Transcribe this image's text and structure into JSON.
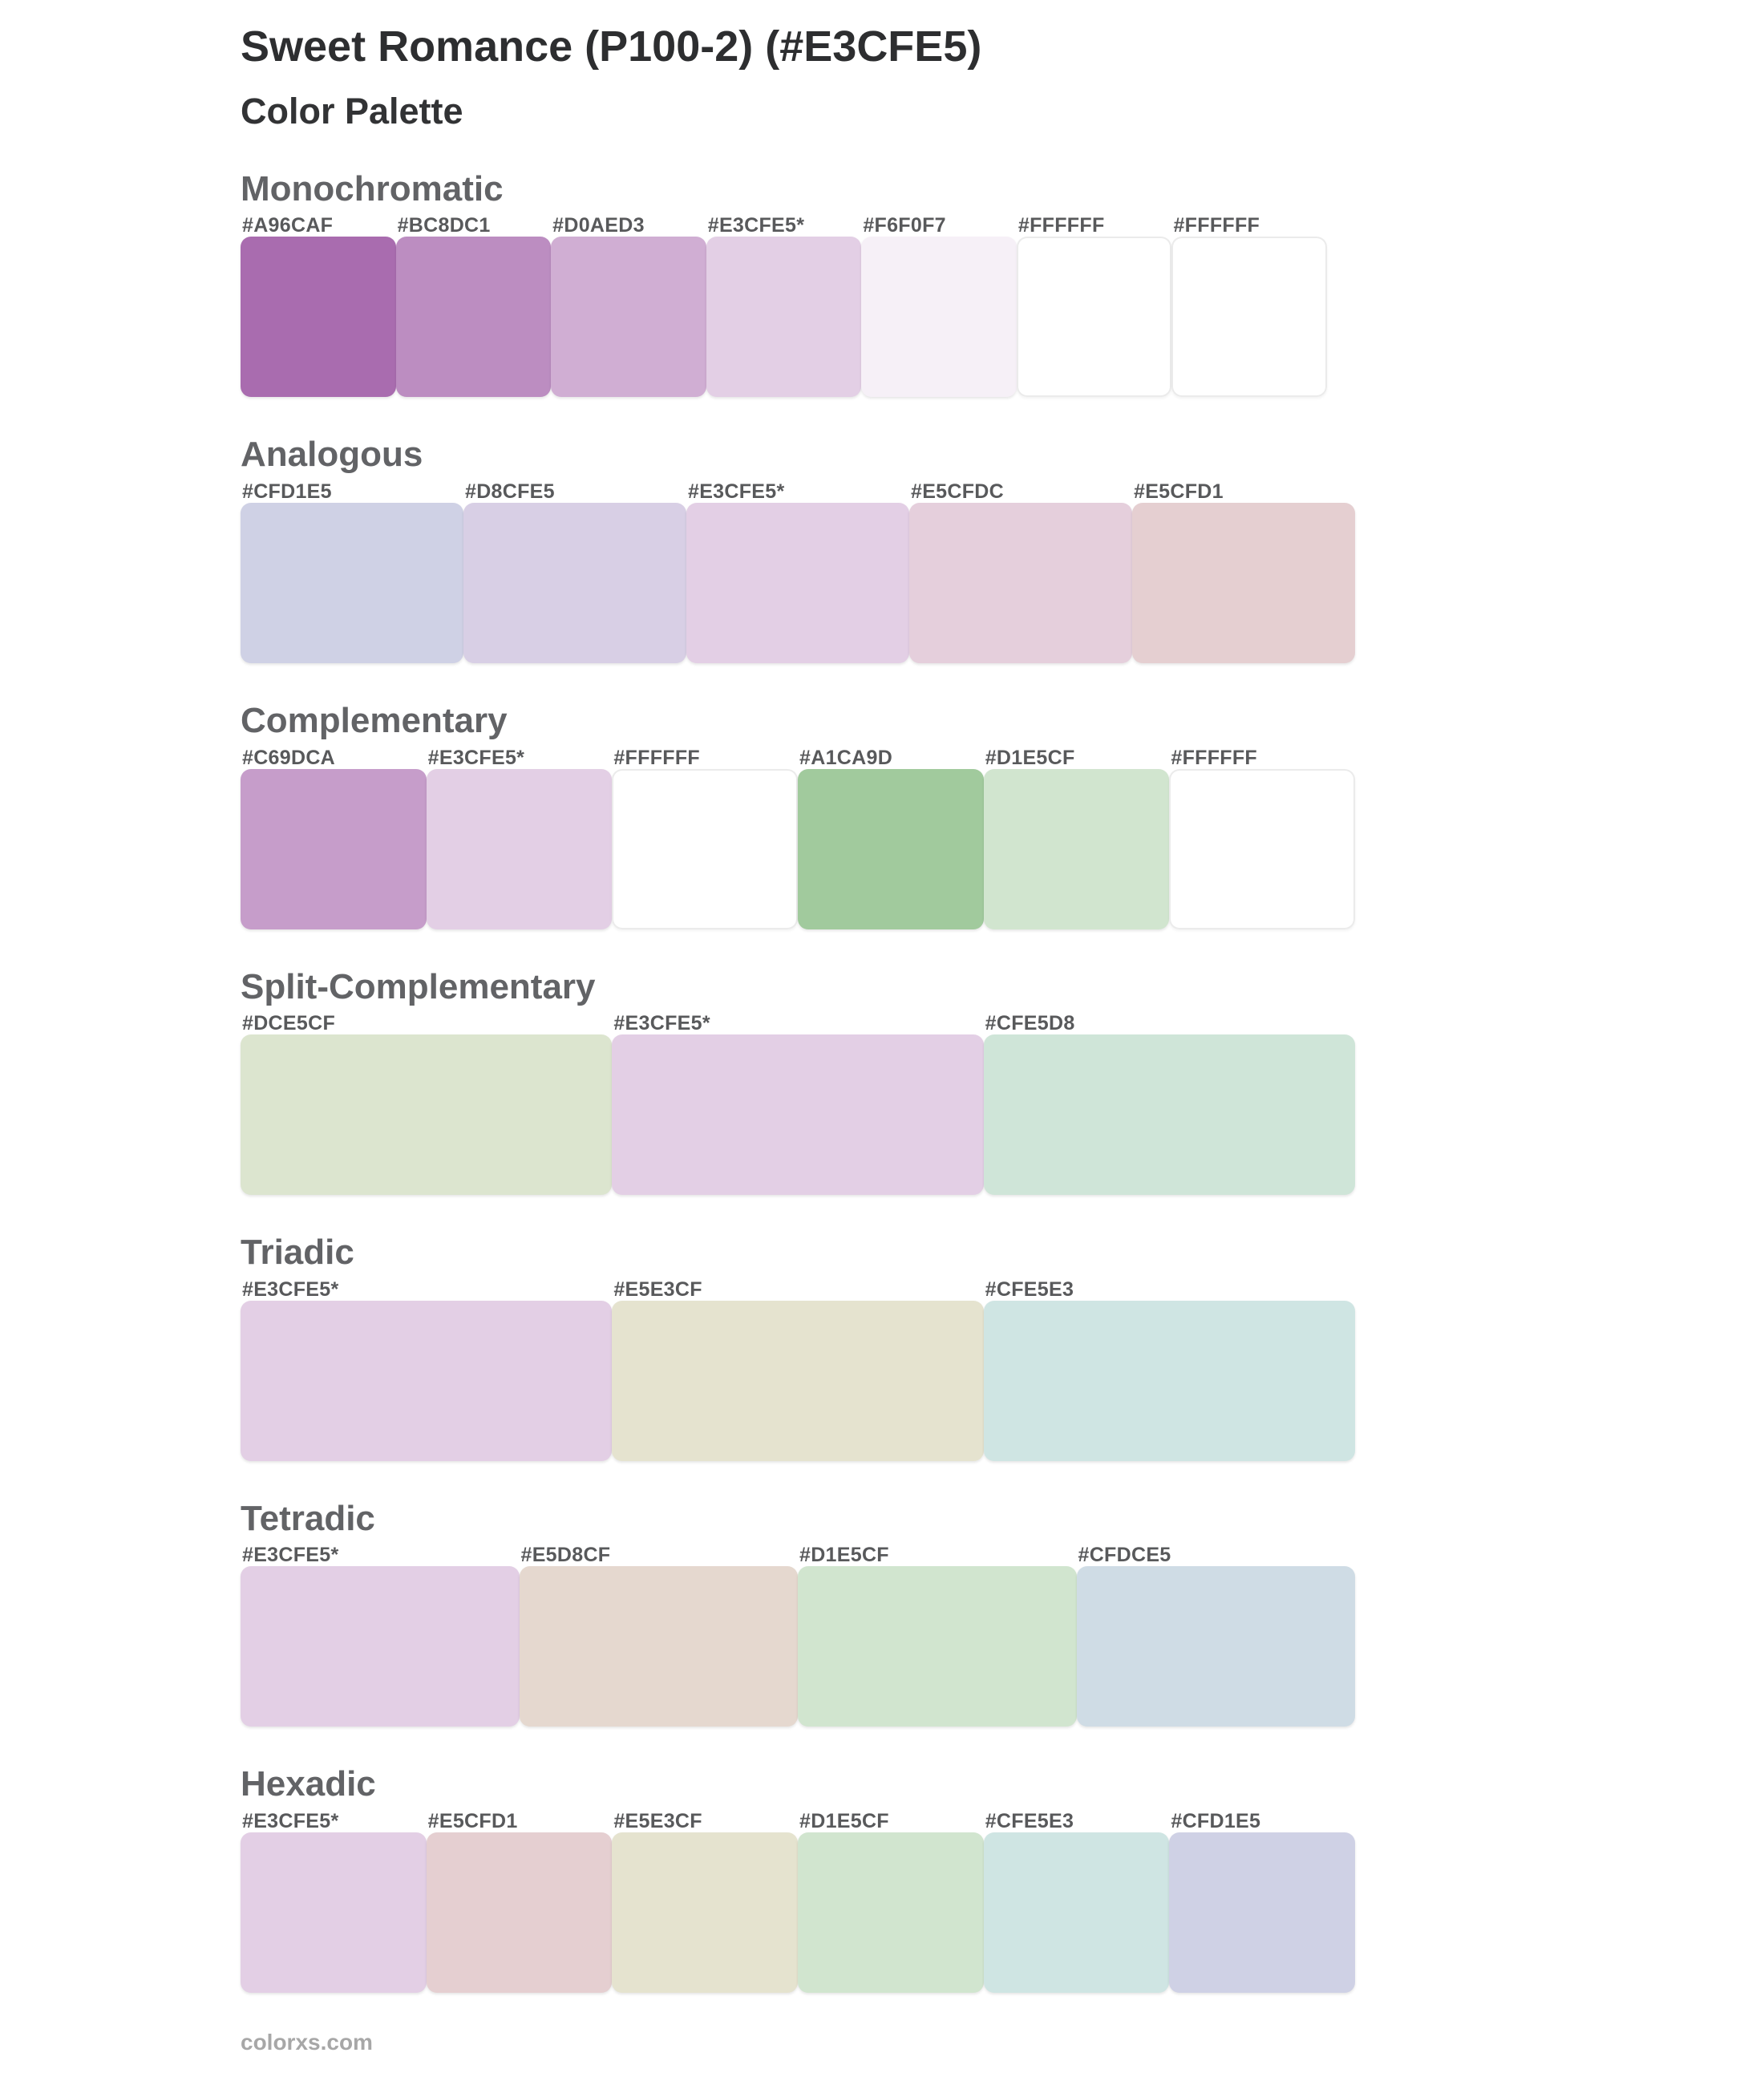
{
  "page": {
    "title": "Sweet Romance (P100-2) (#E3CFE5)",
    "subtitle": "Color Palette",
    "base_color": "#E3CFE5",
    "footer": "colorxs.com"
  },
  "theme": {
    "title_text": "#2D2E30",
    "section_heading_text": "#626366",
    "hex_label_text": "#58595B",
    "footer_text": "#A7A7A7",
    "white_swatch_border": "#EBEBEB",
    "background": "#FFFFFF"
  },
  "sections": [
    {
      "name": "Monochromatic",
      "swatches": [
        {
          "label": "#A96CAF",
          "color": "#A96CAF"
        },
        {
          "label": "#BC8DC1",
          "color": "#BC8DC1"
        },
        {
          "label": "#D0AED3",
          "color": "#D0AED3"
        },
        {
          "label": "#E3CFE5*",
          "color": "#E3CFE5"
        },
        {
          "label": "#F6F0F7",
          "color": "#F6F0F7"
        },
        {
          "label": "#FFFFFF",
          "color": "#FFFFFF"
        },
        {
          "label": "#FFFFFF",
          "color": "#FFFFFF"
        }
      ]
    },
    {
      "name": "Analogous",
      "swatches": [
        {
          "label": "#CFD1E5",
          "color": "#CFD1E5"
        },
        {
          "label": "#D8CFE5",
          "color": "#D8CFE5"
        },
        {
          "label": "#E3CFE5*",
          "color": "#E3CFE5"
        },
        {
          "label": "#E5CFDC",
          "color": "#E5CFDC"
        },
        {
          "label": "#E5CFD1",
          "color": "#E5CFD1"
        }
      ]
    },
    {
      "name": "Complementary",
      "swatches": [
        {
          "label": "#C69DCA",
          "color": "#C69DCA"
        },
        {
          "label": "#E3CFE5*",
          "color": "#E3CFE5"
        },
        {
          "label": "#FFFFFF",
          "color": "#FFFFFF"
        },
        {
          "label": "#A1CA9D",
          "color": "#A1CA9D"
        },
        {
          "label": "#D1E5CF",
          "color": "#D1E5CF"
        },
        {
          "label": "#FFFFFF",
          "color": "#FFFFFF"
        }
      ]
    },
    {
      "name": "Split-Complementary",
      "swatches": [
        {
          "label": "#DCE5CF",
          "color": "#DCE5CF"
        },
        {
          "label": "#E3CFE5*",
          "color": "#E3CFE5"
        },
        {
          "label": "#CFE5D8",
          "color": "#CFE5D8"
        }
      ]
    },
    {
      "name": "Triadic",
      "swatches": [
        {
          "label": "#E3CFE5*",
          "color": "#E3CFE5"
        },
        {
          "label": "#E5E3CF",
          "color": "#E5E3CF"
        },
        {
          "label": "#CFE5E3",
          "color": "#CFE5E3"
        }
      ]
    },
    {
      "name": "Tetradic",
      "swatches": [
        {
          "label": "#E3CFE5*",
          "color": "#E3CFE5"
        },
        {
          "label": "#E5D8CF",
          "color": "#E5D8CF"
        },
        {
          "label": "#D1E5CF",
          "color": "#D1E5CF"
        },
        {
          "label": "#CFDCE5",
          "color": "#CFDCE5"
        }
      ]
    },
    {
      "name": "Hexadic",
      "swatches": [
        {
          "label": "#E3CFE5*",
          "color": "#E3CFE5"
        },
        {
          "label": "#E5CFD1",
          "color": "#E5CFD1"
        },
        {
          "label": "#E5E3CF",
          "color": "#E5E3CF"
        },
        {
          "label": "#D1E5CF",
          "color": "#D1E5CF"
        },
        {
          "label": "#CFE5E3",
          "color": "#CFE5E3"
        },
        {
          "label": "#CFD1E5",
          "color": "#CFD1E5"
        }
      ]
    }
  ]
}
